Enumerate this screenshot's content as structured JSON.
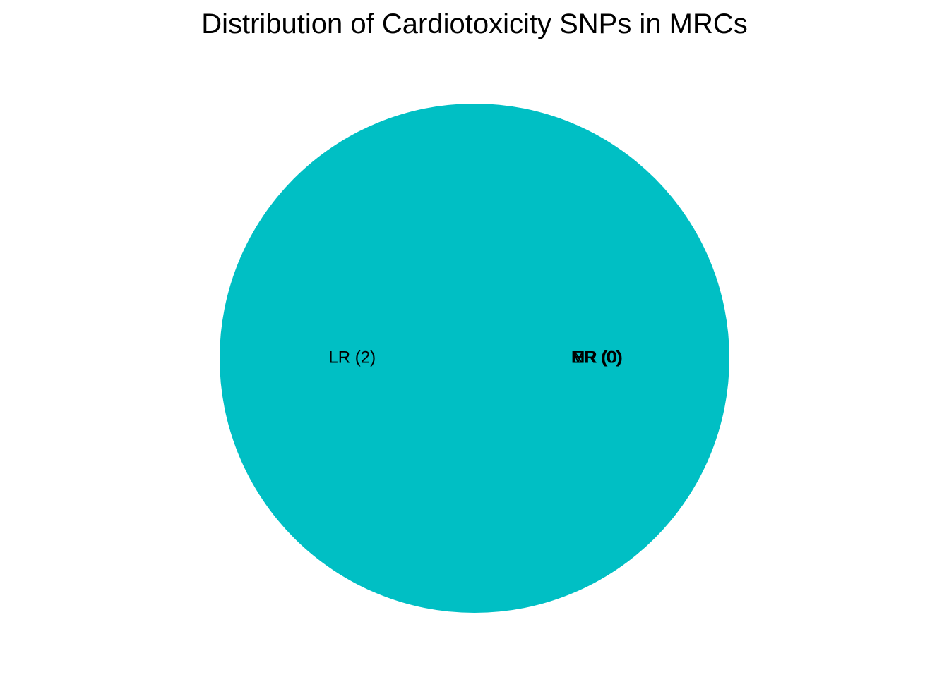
{
  "chart_data": {
    "type": "pie",
    "title": "Distribution of Cardiotoxicity SNPs in MRCs",
    "slices": [
      {
        "category": "LR",
        "value": 2,
        "label": "LR (2)",
        "color": "#00BFC4"
      },
      {
        "category": "ER",
        "value": 0,
        "label": "ER (0)",
        "color": "#F8766D"
      },
      {
        "category": "MR",
        "value": 0,
        "label": "MR (0)",
        "color": "#7CAE00"
      },
      {
        "category": "NR",
        "value": 0,
        "label": "NR (0)",
        "color": "#C77CFF"
      }
    ],
    "legend": "none"
  }
}
